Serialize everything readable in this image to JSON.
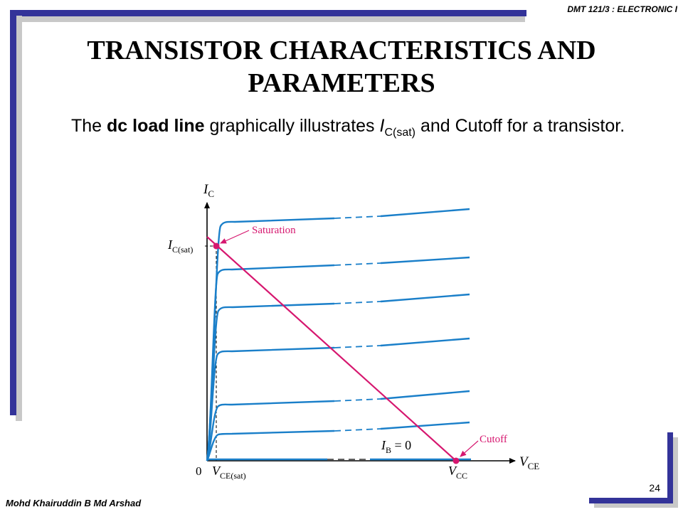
{
  "header": {
    "course": "DMT 121/3 : ELECTRONIC I"
  },
  "slide": {
    "title": "TRANSISTOR CHARACTERISTICS AND PARAMETERS",
    "text_before": "The ",
    "text_bold": "dc load line",
    "text_middle": " graphically illustrates ",
    "text_ic": "I",
    "text_ic_sub": "C(sat)",
    "text_after": " and Cutoff for a transistor."
  },
  "diagram": {
    "axis_y_main": "I",
    "axis_y_sub": "C",
    "axis_x_main": "V",
    "axis_x_sub": "CE",
    "origin": "0",
    "ic_sat_main": "I",
    "ic_sat_sub": "C(sat)",
    "vce_sat_main": "V",
    "vce_sat_sub": "CE(sat)",
    "vcc_main": "V",
    "vcc_sub": "CC",
    "saturation_label": "Saturation",
    "cutoff_label": "Cutoff",
    "ib_main": "I",
    "ib_sub": "B",
    "ib_value": " = 0",
    "colors": {
      "curve": "#1a7fc9",
      "load_line": "#d6176f",
      "axis": "#000000"
    }
  },
  "footer": {
    "author": "Mohd Khairuddin B Md Arshad",
    "page": "24"
  }
}
